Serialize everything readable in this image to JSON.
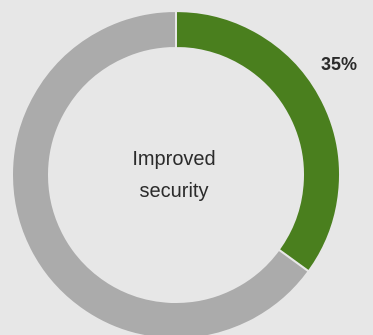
{
  "chart_data": {
    "type": "pie",
    "style": "donut",
    "center_label": [
      "Improved",
      "security"
    ],
    "slices": [
      {
        "value": 35,
        "color": "#4a7f1e",
        "label": "35%"
      },
      {
        "value": 65,
        "color": "#ababab",
        "label": ""
      }
    ],
    "grid": false,
    "legend": "none"
  }
}
